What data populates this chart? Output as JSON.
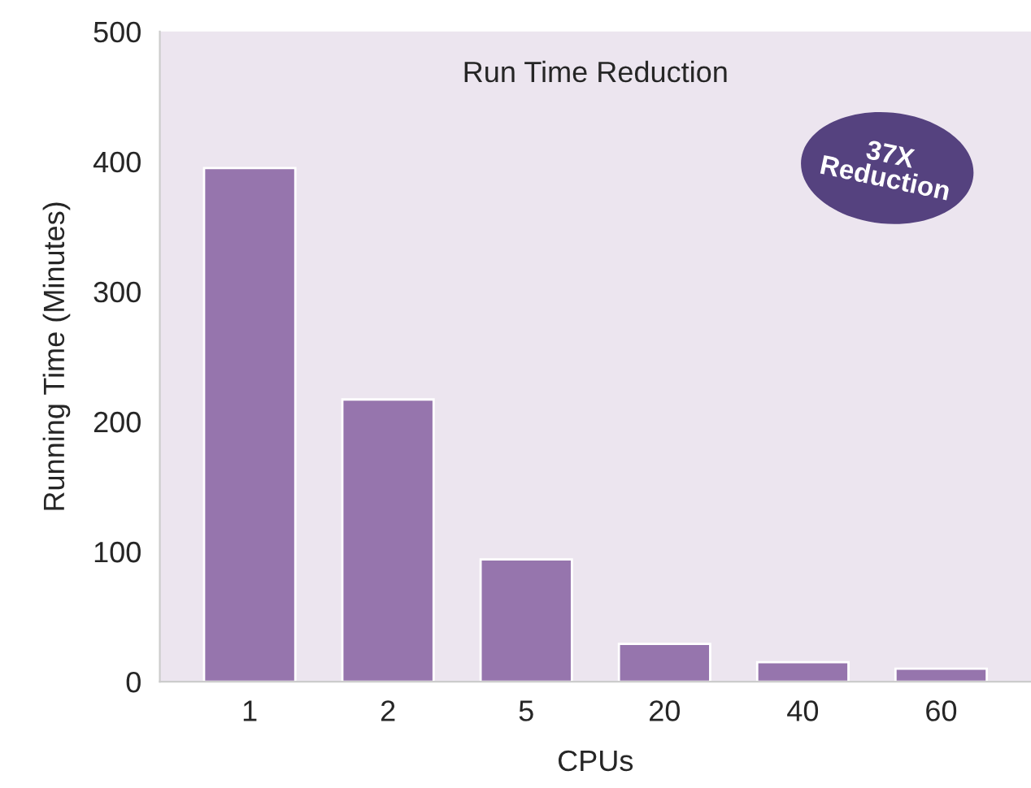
{
  "chart_data": {
    "type": "bar",
    "title": "Run Time Reduction",
    "xlabel": "CPUs",
    "ylabel": "Running Time (Minutes)",
    "categories": [
      "1",
      "2",
      "5",
      "20",
      "40",
      "60"
    ],
    "values": [
      395,
      217,
      94,
      29,
      15,
      10
    ],
    "color": "#9675ad",
    "ylim": [
      0,
      500
    ],
    "yticks": [
      0,
      100,
      200,
      300,
      400,
      500
    ],
    "grid": false,
    "annotations": [
      "37X\nReduction"
    ]
  }
}
